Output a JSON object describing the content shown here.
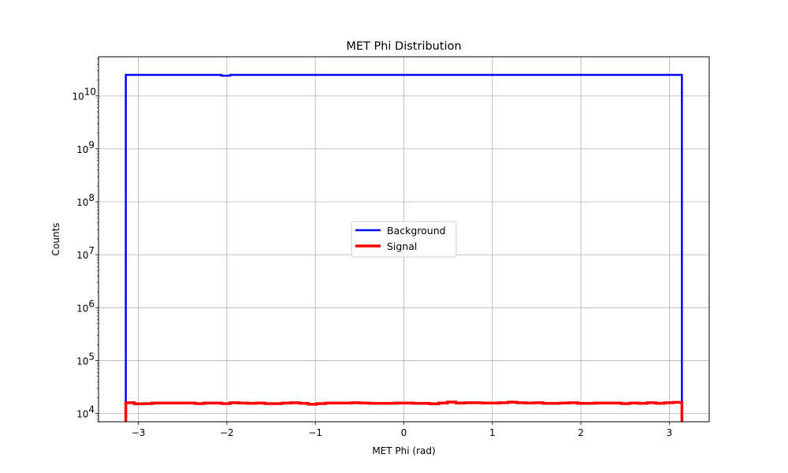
{
  "chart_data": {
    "type": "line",
    "title": "MET Phi Distribution",
    "xlabel": "MET Phi (rad)",
    "ylabel": "Counts",
    "xlim": [
      -3.45,
      3.45
    ],
    "ylim": [
      7000,
      55000000000
    ],
    "yscale": "log",
    "grid": true,
    "legend_position": "center",
    "x_ticks": [
      -3,
      -2,
      -1,
      0,
      1,
      2,
      3
    ],
    "x_tick_labels": [
      "−3",
      "−2",
      "−1",
      "0",
      "1",
      "2",
      "3"
    ],
    "y_ticks": [
      10000,
      100000,
      1000000,
      10000000,
      100000000,
      1000000000,
      10000000000
    ],
    "y_tick_labels": [
      "10",
      "10",
      "10",
      "10",
      "10",
      "10",
      "10"
    ],
    "y_tick_exponents": [
      "4",
      "5",
      "6",
      "7",
      "8",
      "9",
      "10"
    ],
    "bin_range": [
      -3.14159,
      3.14159
    ],
    "series": [
      {
        "name": "Background",
        "color": "#0000ff",
        "values": [
          25000000000,
          25000000000,
          25000000000,
          25000000000,
          25000000000,
          25000000000,
          25000000000,
          25000000000,
          25000000000,
          25000000000,
          25000000000,
          24200000000,
          25000000000,
          25000000000,
          25000000000,
          25000000000,
          25000000000,
          25000000000,
          25000000000,
          25000000000,
          25000000000,
          25000000000,
          25000000000,
          25000000000,
          25000000000,
          25000000000,
          25000000000,
          25000000000,
          25000000000,
          25000000000,
          25000000000,
          25000000000,
          25000000000,
          25000000000,
          25000000000,
          25000000000,
          25000000000,
          25000000000,
          25000000000,
          25000000000,
          25000000000,
          25000000000,
          25000000000,
          25000000000,
          25000000000,
          25000000000,
          25000000000,
          25000000000,
          25000000000,
          25000000000,
          25000000000,
          25000000000,
          25000000000,
          25000000000,
          25000000000,
          25000000000,
          25000000000,
          25000000000,
          25000000000,
          25000000000,
          25000000000,
          25000000000,
          25000000000,
          25000000000
        ]
      },
      {
        "name": "Signal",
        "color": "#ff0000",
        "values": [
          16000,
          15300,
          15400,
          15800,
          15800,
          15800,
          15800,
          15800,
          15400,
          15800,
          15800,
          15400,
          16000,
          15800,
          15600,
          15800,
          15400,
          15400,
          15800,
          16000,
          15600,
          15000,
          15400,
          15800,
          15800,
          15800,
          16000,
          15800,
          15600,
          15600,
          15600,
          15800,
          15800,
          15600,
          15600,
          15300,
          15800,
          16500,
          15800,
          16000,
          16000,
          15800,
          15800,
          16000,
          16400,
          16000,
          15800,
          16000,
          15600,
          15600,
          15800,
          16000,
          15600,
          15600,
          15800,
          15800,
          15800,
          15400,
          15800,
          15600,
          16000,
          15600,
          16000,
          16300
        ]
      }
    ]
  }
}
